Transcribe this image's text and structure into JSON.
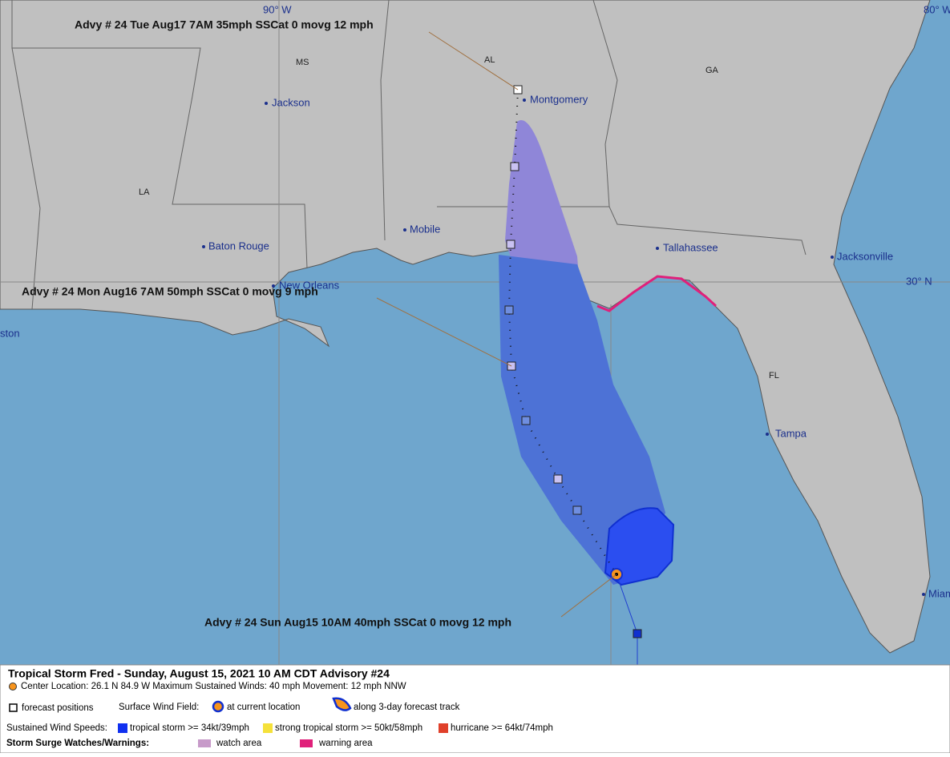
{
  "map": {
    "graticule": {
      "lon90": "90° W",
      "lon80": "80° W",
      "lat30": "30° N"
    },
    "states": [
      "MS",
      "AL",
      "GA",
      "LA",
      "FL"
    ],
    "cities": [
      "Jackson",
      "Montgomery",
      "Baton Rouge",
      "Mobile",
      "Tallahassee",
      "Jacksonville",
      "New Orleans",
      "ston",
      "Tampa",
      "Miam"
    ],
    "callouts": [
      "Advy # 24 Tue Aug17 7AM  35mph SSCat 0 movg 12 mph",
      "Advy # 24 Mon Aug16 7AM  50mph SSCat 0 movg 9 mph",
      "Advy # 24 Sun Aug15 10AM  40mph SSCat 0 movg 12 mph"
    ]
  },
  "legend": {
    "title": "Tropical Storm Fred  -  Sunday, August 15, 2021  10 AM CDT   Advisory #24",
    "center": "Center Location: 26.1 N  84.9 W   Maximum Sustained Winds: 40 mph  Movement: 12 mph NNW",
    "forecast_positions": "forecast positions",
    "surface_wind_field": "Surface Wind Field:",
    "current_location": "at current location",
    "forecast_track": "along 3-day forecast track",
    "sustained_wind_speeds": "Sustained Wind Speeds:",
    "tropical_storm": "tropical storm >= 34kt/39mph",
    "strong_tropical_storm": "strong tropical storm >= 50kt/58mph",
    "hurricane": "hurricane >= 64kt/74mph",
    "storm_surge": "Storm Surge Watches/Warnings:",
    "watch_area": "watch area",
    "warning_area": "warning area"
  }
}
